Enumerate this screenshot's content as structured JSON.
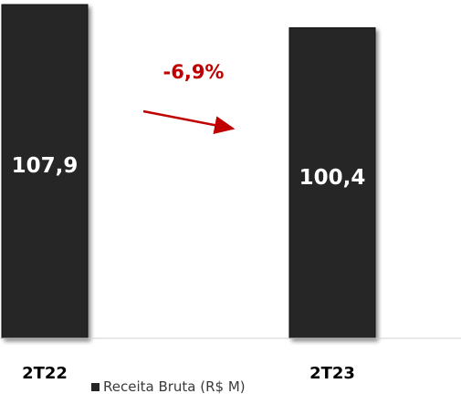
{
  "chart_data": {
    "type": "bar",
    "categories": [
      "2T22",
      "2T23"
    ],
    "series": [
      {
        "name": "Receita Bruta (R$ M)",
        "values": [
          107.9,
          100.4
        ],
        "labels": [
          "107,9",
          "100,4"
        ]
      }
    ],
    "ylim": [
      0,
      107.9
    ],
    "grid": false,
    "legend": "bottom",
    "annotations": [
      {
        "text": "-6,9%",
        "type": "arrow",
        "from": "2T22",
        "to": "2T23",
        "color": "#c00000"
      }
    ],
    "colors": {
      "bar": "#262626",
      "bar_edge": "#111111",
      "label": "#ffffff",
      "category_label": "#000000",
      "axis": "#d0d0d0"
    }
  }
}
